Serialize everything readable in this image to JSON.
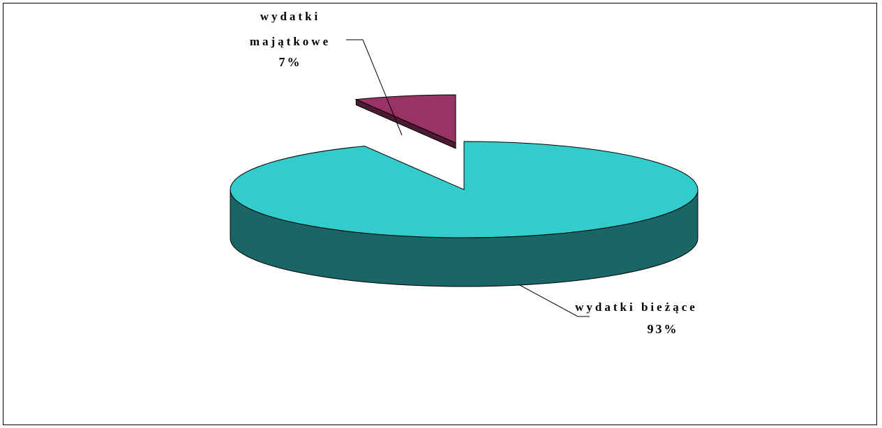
{
  "chart_data": {
    "type": "pie",
    "style": "3d-exploded",
    "legend": "none",
    "slices": [
      {
        "name_lines": [
          "wydatki bieżące"
        ],
        "percent_label": "93%",
        "value": 93,
        "color_top": "#33CCCC",
        "color_side": "#1A6666"
      },
      {
        "name_lines": [
          "wydatki",
          "majątkowe"
        ],
        "percent_label": "7%",
        "value": 7,
        "color_top": "#993366",
        "color_side": "#4D1A33"
      }
    ]
  }
}
